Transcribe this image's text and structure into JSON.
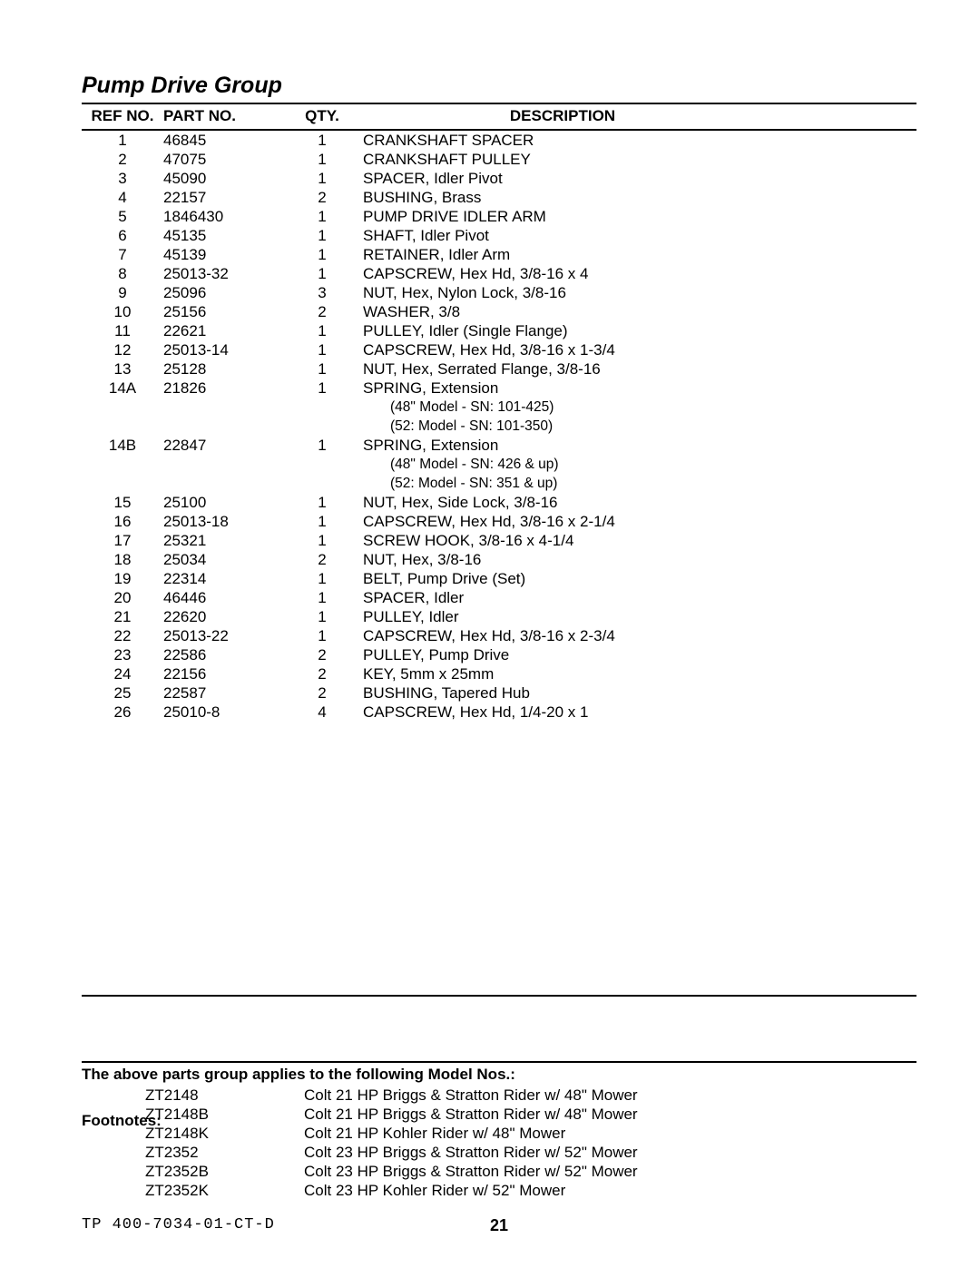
{
  "title": "Pump Drive Group",
  "columns": {
    "ref": "REF NO.",
    "part": "PART NO.",
    "qty": "QTY.",
    "desc": "DESCRIPTION"
  },
  "rows": [
    {
      "ref": "1",
      "part": "46845",
      "qty": "1",
      "desc": "CRANKSHAFT SPACER"
    },
    {
      "ref": "2",
      "part": "47075",
      "qty": "1",
      "desc": "CRANKSHAFT PULLEY"
    },
    {
      "ref": "3",
      "part": "45090",
      "qty": "1",
      "desc": "SPACER, Idler Pivot"
    },
    {
      "ref": "4",
      "part": "22157",
      "qty": "2",
      "desc": "BUSHING, Brass"
    },
    {
      "ref": "5",
      "part": "1846430",
      "qty": "1",
      "desc": "PUMP DRIVE IDLER ARM"
    },
    {
      "ref": "6",
      "part": "45135",
      "qty": "1",
      "desc": "SHAFT, Idler Pivot"
    },
    {
      "ref": "7",
      "part": "45139",
      "qty": "1",
      "desc": "RETAINER, Idler Arm"
    },
    {
      "ref": "8",
      "part": "25013-32",
      "qty": "1",
      "desc": "CAPSCREW, Hex Hd, 3/8-16 x 4"
    },
    {
      "ref": "9",
      "part": "25096",
      "qty": "3",
      "desc": "NUT, Hex, Nylon Lock, 3/8-16"
    },
    {
      "ref": "10",
      "part": "25156",
      "qty": "2",
      "desc": "WASHER, 3/8"
    },
    {
      "ref": "11",
      "part": "22621",
      "qty": "1",
      "desc": "PULLEY, Idler (Single Flange)"
    },
    {
      "ref": "12",
      "part": "25013-14",
      "qty": "1",
      "desc": "CAPSCREW, Hex Hd, 3/8-16 x 1-3/4"
    },
    {
      "ref": "13",
      "part": "25128",
      "qty": "1",
      "desc": "NUT, Hex, Serrated Flange, 3/8-16"
    },
    {
      "ref": "14A",
      "part": "21826",
      "qty": "1",
      "desc": "SPRING, Extension",
      "sub": [
        "(48\" Model - SN: 101-425)",
        "(52: Model - SN: 101-350)"
      ]
    },
    {
      "ref": "14B",
      "part": "22847",
      "qty": "1",
      "desc": "SPRING, Extension",
      "sub": [
        "(48\" Model - SN: 426 & up)",
        "(52: Model - SN: 351 & up)"
      ]
    },
    {
      "ref": "15",
      "part": "25100",
      "qty": "1",
      "desc": "NUT, Hex, Side Lock, 3/8-16"
    },
    {
      "ref": "16",
      "part": "25013-18",
      "qty": "1",
      "desc": "CAPSCREW, Hex Hd, 3/8-16 x 2-1/4"
    },
    {
      "ref": "17",
      "part": "25321",
      "qty": "1",
      "desc": "SCREW HOOK, 3/8-16 x 4-1/4"
    },
    {
      "ref": "18",
      "part": "25034",
      "qty": "2",
      "desc": "NUT, Hex, 3/8-16"
    },
    {
      "ref": "19",
      "part": "22314",
      "qty": "1",
      "desc": "BELT, Pump Drive (Set)"
    },
    {
      "ref": "20",
      "part": "46446",
      "qty": "1",
      "desc": "SPACER, Idler"
    },
    {
      "ref": "21",
      "part": "22620",
      "qty": "1",
      "desc": "PULLEY, Idler"
    },
    {
      "ref": "22",
      "part": "25013-22",
      "qty": "1",
      "desc": "CAPSCREW, Hex Hd, 3/8-16 x 2-3/4"
    },
    {
      "ref": "23",
      "part": "22586",
      "qty": "2",
      "desc": "PULLEY, Pump Drive"
    },
    {
      "ref": "24",
      "part": "22156",
      "qty": "2",
      "desc": "KEY, 5mm x 25mm"
    },
    {
      "ref": "25",
      "part": "22587",
      "qty": "2",
      "desc": "BUSHING, Tapered Hub"
    },
    {
      "ref": "26",
      "part": "25010-8",
      "qty": "4",
      "desc": "CAPSCREW, Hex Hd, 1/4-20 x 1"
    }
  ],
  "footnotes_label": "Footnotes:",
  "models_title": "The above parts group applies to the following Model Nos.:",
  "models": [
    {
      "code": "ZT2148",
      "desc": "Colt 21 HP Briggs & Stratton Rider w/ 48\" Mower"
    },
    {
      "code": "ZT2148B",
      "desc": "Colt 21 HP Briggs & Stratton Rider w/ 48\" Mower"
    },
    {
      "code": "ZT2148K",
      "desc": "Colt 21 HP Kohler Rider w/ 48\" Mower"
    },
    {
      "code": "ZT2352",
      "desc": "Colt 23 HP Briggs & Stratton Rider w/ 52\" Mower"
    },
    {
      "code": "ZT2352B",
      "desc": "Colt 23 HP Briggs & Stratton Rider w/ 52\" Mower"
    },
    {
      "code": "ZT2352K",
      "desc": "Colt 23 HP Kohler Rider w/ 52\" Mower"
    }
  ],
  "doc_id": "TP 400-7034-01-CT-D",
  "page_number": "21"
}
